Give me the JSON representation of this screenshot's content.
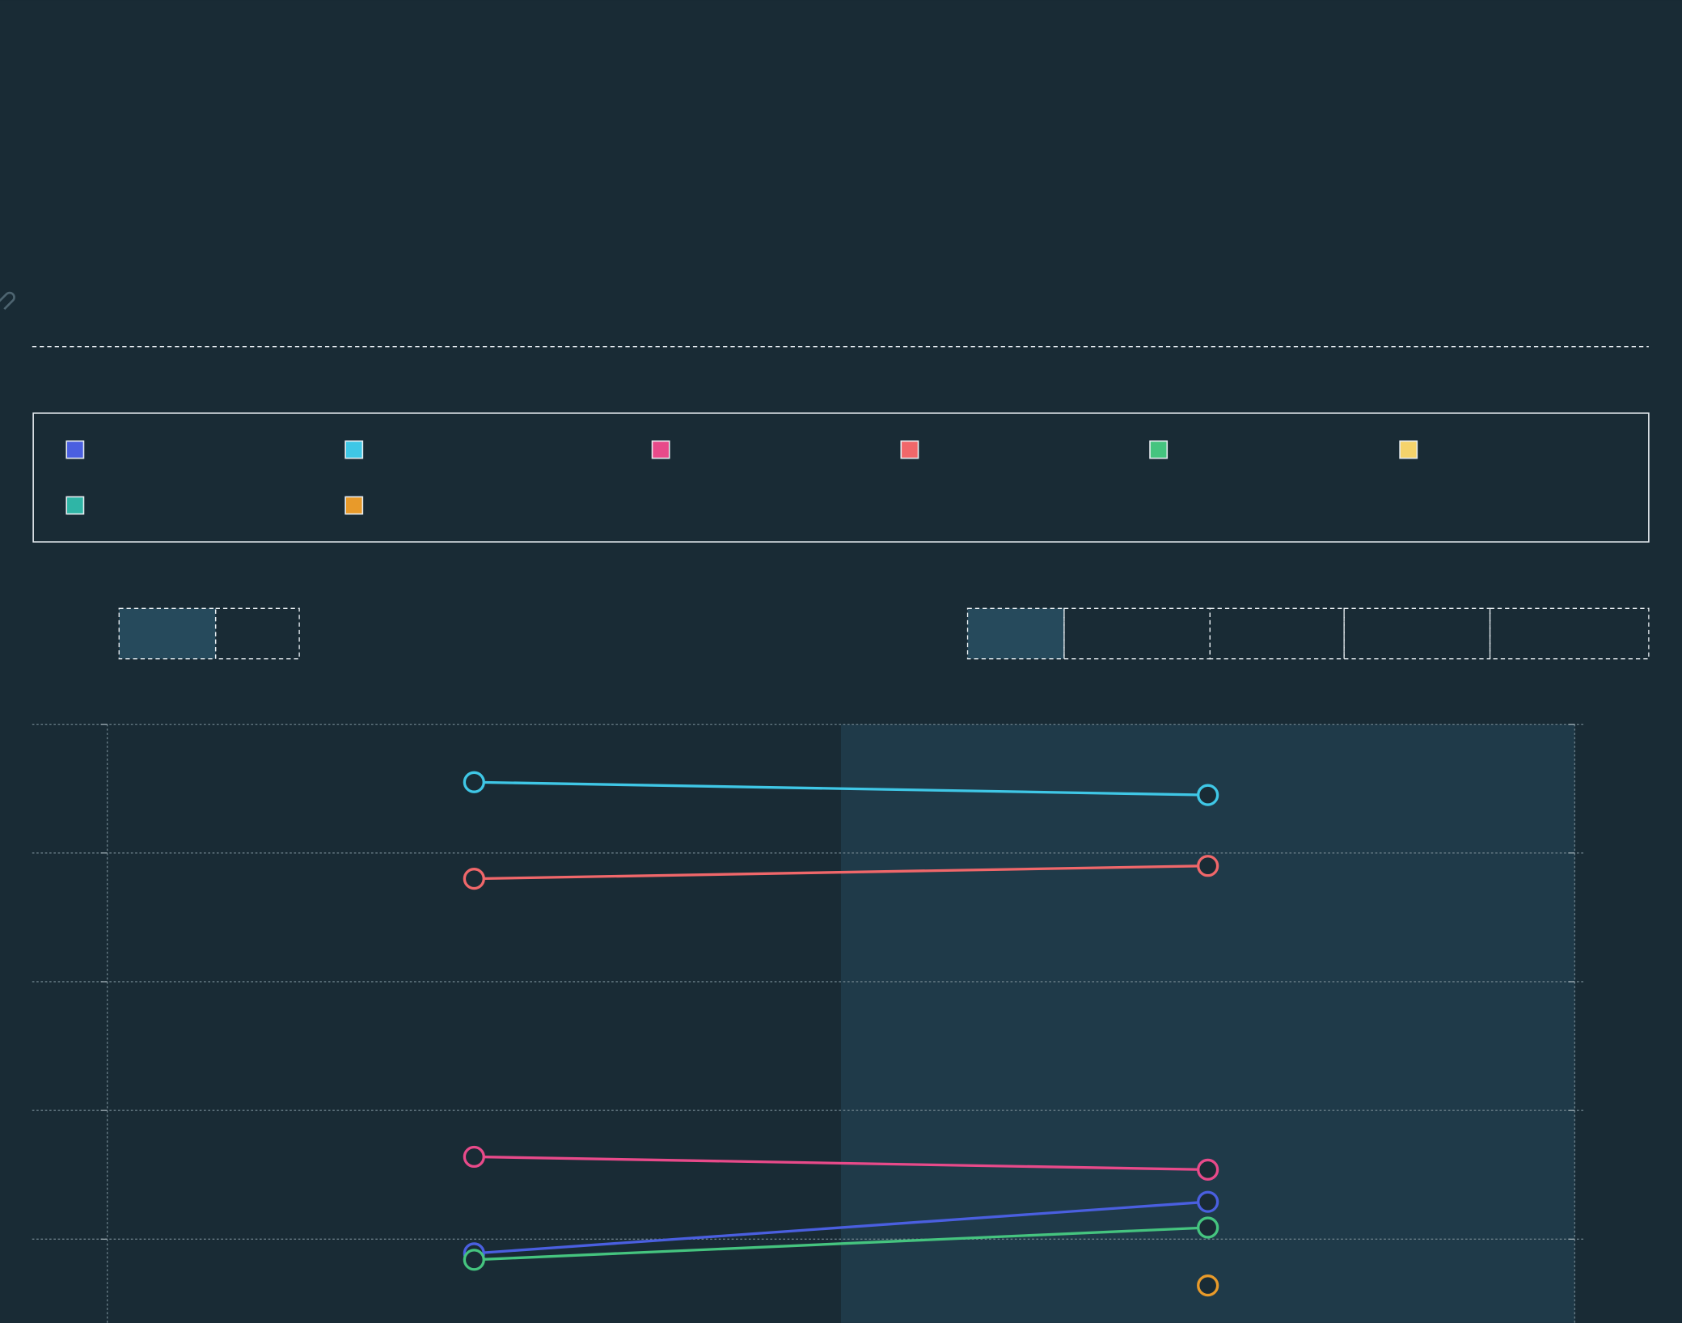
{
  "chart_data": {
    "type": "line",
    "categories": [
      null,
      null
    ],
    "series": [
      {
        "color": "#4a5fe0",
        "values": [
          0.89,
          1.29
        ]
      },
      {
        "color": "#3fc7e6",
        "values": [
          4.55,
          4.45
        ]
      },
      {
        "color": "#e84a8a",
        "values": [
          1.64,
          1.54
        ]
      },
      {
        "color": "#f0676a",
        "values": [
          3.8,
          3.9
        ]
      },
      {
        "color": "#45c47f",
        "values": [
          0.84,
          1.09
        ]
      },
      {
        "color": "#f5d36b",
        "values": [
          null,
          null
        ]
      },
      {
        "color": "#2fb5a6",
        "values": [
          null,
          null
        ]
      },
      {
        "color": "#e89a2a",
        "values": [
          null,
          0.64
        ]
      }
    ],
    "ylim": [
      0.35,
      5
    ],
    "yticks": [
      1,
      2,
      3,
      4,
      5
    ],
    "grid": true
  }
}
